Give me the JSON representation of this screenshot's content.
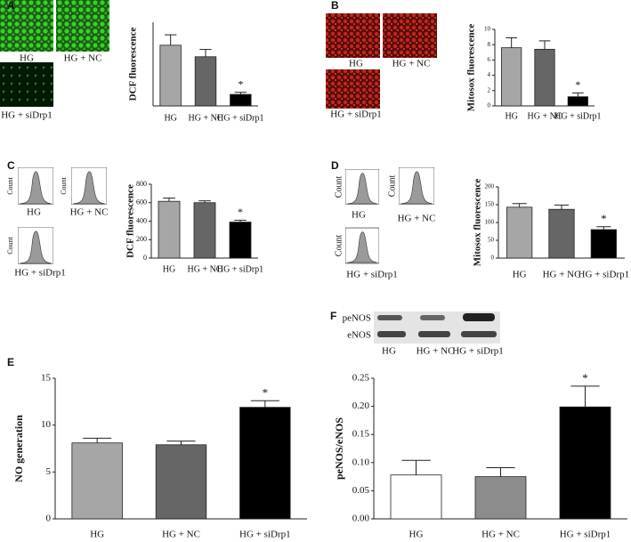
{
  "figure": {
    "panels": [
      {
        "letter": "A",
        "image_labels": [
          "HG",
          "HG + NC",
          "HG + siDrp1"
        ]
      },
      {
        "letter": "B",
        "image_labels": [
          "HG",
          "HG + NC",
          "HG + siDrp1"
        ]
      },
      {
        "letter": "C",
        "image_labels": [
          "HG",
          "HG + NC",
          "HG + siDrp1"
        ],
        "axis_labels": [
          "Count",
          "Count",
          "Count"
        ]
      },
      {
        "letter": "D",
        "image_labels": [
          "HG",
          "HG + NC",
          "HG  +  siDrp1"
        ],
        "axis_labels": [
          "Count",
          "Count",
          "Count"
        ]
      },
      {
        "letter": "E"
      },
      {
        "letter": "F",
        "blot_labels": [
          "peNOS",
          "eNOS"
        ],
        "image_labels": [
          "HG",
          "HG + NC",
          "HG + siDrp1"
        ]
      }
    ]
  },
  "chart_data": [
    {
      "type": "bar",
      "ylabel": "DCF fluorescence",
      "categories": [
        "HG",
        "HG + NC",
        "HG + siDrp1"
      ],
      "values": [
        5.8,
        4.7,
        1.1
      ],
      "errors": [
        1.0,
        0.7,
        0.2
      ],
      "colors": [
        "#a6a6a6",
        "#666666",
        "#000000"
      ],
      "ylim": [
        0,
        8
      ],
      "annotation": "*"
    },
    {
      "type": "bar",
      "ylabel": "Mitosox fluorescence",
      "categories": [
        "HG",
        "HG + NC",
        "HG + siDrp1"
      ],
      "values": [
        7.6,
        7.4,
        1.2
      ],
      "errors": [
        1.3,
        1.1,
        0.5
      ],
      "colors": [
        "#a6a6a6",
        "#666666",
        "#000000"
      ],
      "ylim": [
        0,
        10
      ],
      "yticks": [
        0,
        2,
        4,
        6,
        8,
        10
      ],
      "annotation": "*"
    },
    {
      "type": "bar",
      "ylabel": "DCF fluorescence",
      "categories": [
        "HG",
        "HG + NC",
        "HG + siDrp1"
      ],
      "values": [
        615,
        600,
        390
      ],
      "errors": [
        35,
        20,
        20
      ],
      "colors": [
        "#a6a6a6",
        "#666666",
        "#000000"
      ],
      "ylim": [
        0,
        800
      ],
      "yticks": [
        0,
        200,
        400,
        600,
        800
      ],
      "annotation": "*"
    },
    {
      "type": "bar",
      "ylabel": "Mitosox fluorescence",
      "categories": [
        "HG",
        "HG + NC",
        "HG + siDrp1"
      ],
      "values": [
        143,
        137,
        80
      ],
      "errors": [
        10,
        12,
        8
      ],
      "colors": [
        "#a6a6a6",
        "#666666",
        "#000000"
      ],
      "ylim": [
        0,
        200
      ],
      "yticks": [
        0,
        50,
        100,
        150,
        200
      ],
      "annotation": "*"
    },
    {
      "type": "bar",
      "ylabel": "NO generation",
      "categories": [
        "HG",
        "HG + NC",
        "HG + siDrp1"
      ],
      "values": [
        8.1,
        7.9,
        11.9
      ],
      "errors": [
        0.5,
        0.4,
        0.7
      ],
      "colors": [
        "#a6a6a6",
        "#666666",
        "#000000"
      ],
      "ylim": [
        0,
        15
      ],
      "yticks": [
        0,
        5,
        10,
        15
      ],
      "annotation": "*"
    },
    {
      "type": "bar",
      "ylabel": "peNOS/eNOS",
      "categories": [
        "HG",
        "HG + NC",
        "HG + siDrp1"
      ],
      "values": [
        0.078,
        0.075,
        0.199
      ],
      "errors": [
        0.026,
        0.016,
        0.037
      ],
      "colors": [
        "#ffffff",
        "#8c8c8c",
        "#000000"
      ],
      "ylim": [
        0,
        0.25
      ],
      "yticks": [
        {
          "value": 0,
          "label": "0.00"
        },
        0.05,
        {
          "value": 0.1,
          "label": "0.10"
        },
        0.15,
        {
          "value": 0.2,
          "label": "0.20"
        },
        0.25
      ],
      "annotation": "*"
    }
  ]
}
